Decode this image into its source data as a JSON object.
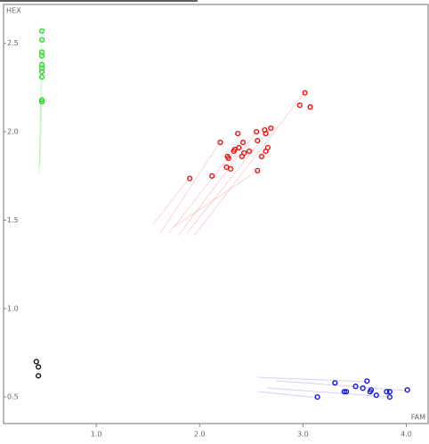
{
  "chart_data": {
    "type": "scatter",
    "x_label": "FAM",
    "y_label": "HEX",
    "xlim": [
      0.103,
      4.22
    ],
    "ylim": [
      0.35,
      2.72
    ],
    "xticks": [
      {
        "value": 1,
        "label": "1.0"
      },
      {
        "value": 2,
        "label": "2.0"
      },
      {
        "value": 3,
        "label": "3.0"
      },
      {
        "value": 4,
        "label": "4.0"
      }
    ],
    "yticks": [
      0.5,
      {
        "value": 1,
        "label": "1.0"
      },
      1.5,
      {
        "value": 2,
        "label": "2.0"
      },
      2.5
    ],
    "series": [
      {
        "color": "#22dd22",
        "x": [
          0.474,
          0.474,
          0.474,
          0.474,
          0.474,
          0.474,
          0.474,
          0.474,
          0.474,
          0.474
        ],
        "values": [
          2.57,
          2.52,
          2.45,
          2.43,
          2.38,
          2.36,
          2.34,
          2.31,
          2.18,
          2.17
        ]
      },
      {
        "color": "#ee1111",
        "x": [
          1.905,
          2.12,
          2.2,
          2.26,
          2.3,
          2.27,
          2.28,
          2.33,
          2.34,
          2.38,
          2.37,
          2.41,
          2.42,
          2.43,
          2.48,
          2.55,
          2.56,
          2.56,
          2.6,
          2.63,
          2.64,
          2.64,
          2.66,
          2.69,
          2.97,
          3.02,
          3.07
        ],
        "values": [
          1.736,
          1.75,
          1.94,
          1.8,
          1.79,
          1.86,
          1.85,
          1.89,
          1.9,
          1.91,
          1.99,
          1.86,
          1.94,
          1.88,
          1.89,
          2.0,
          1.95,
          1.78,
          1.86,
          2.01,
          1.99,
          1.89,
          1.91,
          2.02,
          2.15,
          2.22,
          2.14
        ]
      },
      {
        "color": "#111111",
        "x": [
          0.42,
          0.44,
          0.44
        ],
        "values": [
          0.7,
          0.67,
          0.62
        ]
      },
      {
        "color": "#1111dd",
        "x": [
          3.14,
          3.31,
          3.4,
          3.42,
          3.51,
          3.58,
          3.62,
          3.65,
          3.66,
          3.71,
          3.81,
          3.84,
          3.84,
          4.01
        ],
        "values": [
          0.5,
          0.58,
          0.53,
          0.53,
          0.56,
          0.55,
          0.59,
          0.53,
          0.54,
          0.51,
          0.53,
          0.53,
          0.5,
          0.54
        ]
      }
    ]
  }
}
